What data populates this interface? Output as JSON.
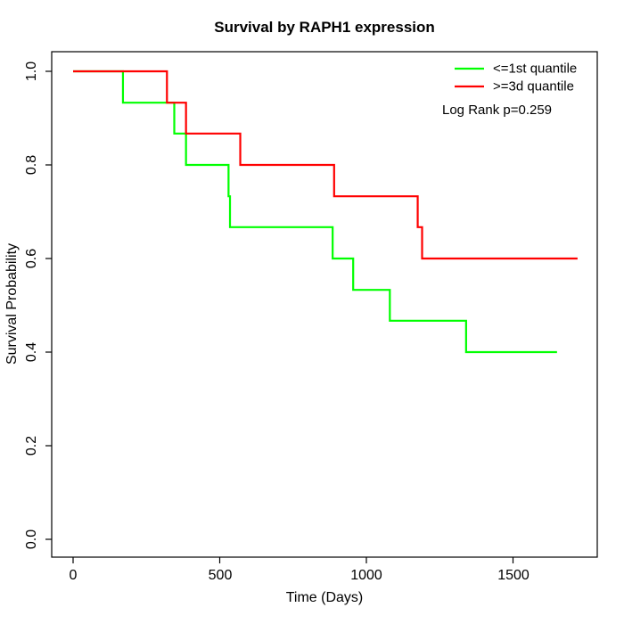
{
  "title": "Survival by RAPH1 expression",
  "chart_data": {
    "type": "line",
    "subtype": "kaplan_meier_step",
    "title": "Survival by RAPH1 expression",
    "xlabel": "Time (Days)",
    "ylabel": "Survival Probability",
    "xlim": [
      0,
      1720
    ],
    "ylim": [
      0.0,
      1.0
    ],
    "x_ticks": [
      0,
      500,
      1000,
      1500
    ],
    "x_tick_labels": [
      "0",
      "500",
      "1000",
      "1500"
    ],
    "y_ticks": [
      0.0,
      0.2,
      0.4,
      0.6,
      0.8,
      1.0
    ],
    "y_tick_labels": [
      "0.0",
      "0.2",
      "0.4",
      "0.6",
      "0.8",
      "1.0"
    ],
    "grid": false,
    "legend_position": "top-right",
    "annotation": "Log Rank p=0.259",
    "series": [
      {
        "name": "<=1st quantile",
        "color": "#00ff00",
        "steps": [
          [
            0,
            1.0
          ],
          [
            170,
            0.933
          ],
          [
            345,
            0.867
          ],
          [
            385,
            0.8
          ],
          [
            530,
            0.733
          ],
          [
            535,
            0.667
          ],
          [
            885,
            0.6
          ],
          [
            955,
            0.533
          ],
          [
            1080,
            0.467
          ],
          [
            1340,
            0.4
          ],
          [
            1650,
            0.4
          ]
        ]
      },
      {
        "name": ">=3d quantile",
        "color": "#ff0000",
        "steps": [
          [
            0,
            1.0
          ],
          [
            320,
            0.933
          ],
          [
            385,
            0.867
          ],
          [
            570,
            0.8
          ],
          [
            890,
            0.733
          ],
          [
            1175,
            0.667
          ],
          [
            1190,
            0.6
          ],
          [
            1720,
            0.6
          ]
        ]
      }
    ]
  },
  "legend": {
    "items": [
      {
        "label": "<=1st quantile",
        "color": "#00ff00"
      },
      {
        "label": ">=3d quantile",
        "color": "#ff0000"
      }
    ],
    "note": "Log Rank p=0.259"
  }
}
